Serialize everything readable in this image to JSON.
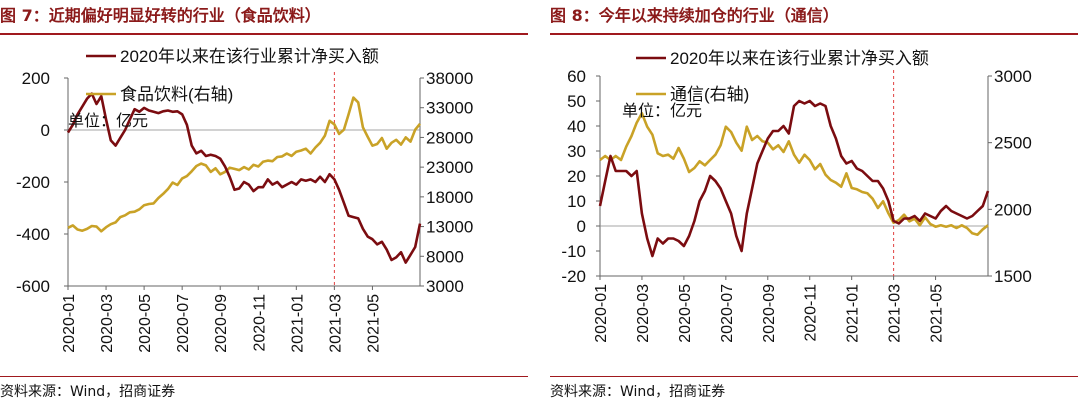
{
  "panels": [
    {
      "title": "图 7：近期偏好明显好转的行业（食品饮料）",
      "source": "资料来源：Wind，招商证券",
      "chart_data": {
        "type": "line",
        "unit_label": "单位：亿元",
        "x_ticks": [
          "2020-01",
          "2020-03",
          "2020-05",
          "2020-07",
          "2020-09",
          "2020-11",
          "2021-01",
          "2021-03",
          "2021-05"
        ],
        "x_range": [
          0,
          74
        ],
        "vline_at": 56,
        "left_axis": {
          "min": -600,
          "max": 200,
          "ticks": [
            -600,
            -400,
            -200,
            0,
            200
          ]
        },
        "right_axis": {
          "min": 3000,
          "max": 38000,
          "ticks": [
            3000,
            8000,
            13000,
            18000,
            23000,
            28000,
            33000,
            38000
          ]
        },
        "series": [
          {
            "name": "2020年以来在该行业累计净买入额",
            "axis": "left",
            "color": "#7B0C10",
            "values": [
              -10,
              20,
              60,
              90,
              120,
              140,
              100,
              130,
              40,
              -40,
              -60,
              -30,
              0,
              40,
              80,
              70,
              85,
              75,
              70,
              65,
              72,
              75,
              70,
              72,
              60,
              20,
              -60,
              -90,
              -80,
              -100,
              -95,
              -100,
              -110,
              -140,
              -180,
              -230,
              -225,
              -200,
              -210,
              -235,
              -220,
              -220,
              -190,
              -210,
              -200,
              -220,
              -210,
              -200,
              -210,
              -190,
              -195,
              -190,
              -200,
              -180,
              -200,
              -170,
              -190,
              -230,
              -280,
              -330,
              -335,
              -340,
              -380,
              -410,
              -420,
              -440,
              -430,
              -460,
              -500,
              -490,
              -470,
              -510,
              -480,
              -450,
              -360
            ]
          },
          {
            "name": "食品饮料(右轴)",
            "axis": "right",
            "color": "#C9A227",
            "values": [
              12800,
              13200,
              12500,
              12300,
              12600,
              13100,
              13000,
              12200,
              12900,
              13400,
              13700,
              14600,
              14900,
              15400,
              15500,
              15900,
              16600,
              16800,
              16900,
              17800,
              18500,
              19300,
              20400,
              20000,
              21100,
              21500,
              22300,
              23200,
              23600,
              23300,
              22200,
              22800,
              21800,
              22200,
              22900,
              22700,
              22500,
              23000,
              22600,
              23400,
              23100,
              23900,
              24100,
              24000,
              24700,
              24800,
              25300,
              24900,
              25600,
              25800,
              26100,
              25300,
              26300,
              27100,
              28300,
              30800,
              30200,
              28600,
              29300,
              31900,
              34700,
              33900,
              29700,
              28100,
              26600,
              26900,
              27900,
              26100,
              27100,
              27600,
              26800,
              28000,
              27300,
              29300,
              30300
            ]
          }
        ]
      }
    },
    {
      "title": "图 8：今年以来持续加仓的行业（通信）",
      "source": "资料来源：Wind，招商证券",
      "chart_data": {
        "type": "line",
        "unit_label": "单位：亿元",
        "x_ticks": [
          "2020-01",
          "2020-03",
          "2020-05",
          "2020-07",
          "2020-09",
          "2020-11",
          "2021-01",
          "2021-03",
          "2021-05"
        ],
        "x_range": [
          0,
          74
        ],
        "vline_at": 56,
        "left_axis": {
          "min": -20,
          "max": 60,
          "ticks": [
            -20,
            -10,
            0,
            10,
            20,
            30,
            40,
            50,
            60
          ]
        },
        "right_axis": {
          "min": 1500,
          "max": 3000,
          "ticks": [
            1500,
            2000,
            2500,
            3000
          ]
        },
        "series": [
          {
            "name": "2020年以来在该行业累计净买入额",
            "axis": "left",
            "color": "#7B0C10",
            "values": [
              8,
              18,
              28,
              22,
              22,
              22,
              20,
              22,
              5,
              -5,
              -12,
              -5,
              -7,
              -5,
              -5,
              -6,
              -8,
              -4,
              2,
              10,
              14,
              20,
              18,
              15,
              10,
              5,
              -4,
              -10,
              5,
              15,
              25,
              30,
              35,
              38,
              38,
              40,
              37,
              48,
              50,
              49,
              50,
              48,
              49,
              48,
              40,
              35,
              28,
              25,
              26,
              23,
              22,
              20,
              18,
              18,
              15,
              10,
              2,
              1,
              3,
              3,
              4,
              2,
              5,
              4,
              3,
              6,
              8,
              6,
              5,
              4,
              3,
              4,
              6,
              8,
              14
            ]
          },
          {
            "name": "通信(右轴)",
            "axis": "right",
            "color": "#C9A227",
            "values": [
              2370,
              2400,
              2370,
              2400,
              2370,
              2470,
              2550,
              2650,
              2720,
              2620,
              2560,
              2420,
              2400,
              2410,
              2380,
              2460,
              2380,
              2280,
              2310,
              2360,
              2330,
              2370,
              2410,
              2480,
              2620,
              2580,
              2500,
              2440,
              2620,
              2520,
              2550,
              2510,
              2500,
              2450,
              2480,
              2430,
              2510,
              2410,
              2350,
              2410,
              2370,
              2300,
              2340,
              2260,
              2220,
              2200,
              2170,
              2270,
              2160,
              2150,
              2130,
              2120,
              2080,
              2010,
              2060,
              1970,
              1900,
              1920,
              1960,
              1910,
              1930,
              1880,
              1940,
              1890,
              1870,
              1880,
              1870,
              1880,
              1860,
              1880,
              1860,
              1820,
              1810,
              1850,
              1880
            ]
          }
        ]
      }
    }
  ]
}
